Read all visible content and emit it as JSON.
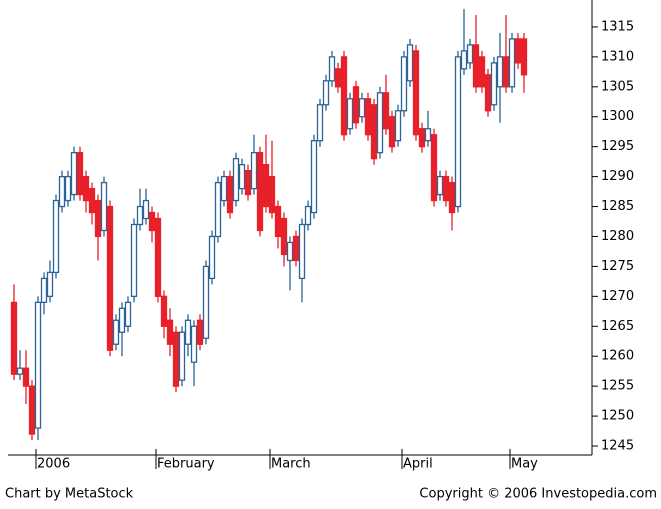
{
  "chart_data": {
    "type": "candlestick",
    "ylim": [
      1243.5,
      1319.5
    ],
    "yticks": [
      1245,
      1250,
      1255,
      1260,
      1265,
      1270,
      1275,
      1280,
      1285,
      1290,
      1295,
      1300,
      1305,
      1310,
      1315
    ],
    "up_color": "#2a6496",
    "down_color": "#e8202a",
    "categories": [
      null,
      null,
      null,
      null,
      "2006",
      null,
      null,
      null,
      null,
      null,
      null,
      null,
      null,
      null,
      null,
      null,
      null,
      null,
      null,
      null,
      null,
      null,
      null,
      null,
      "February",
      null,
      null,
      null,
      null,
      null,
      null,
      null,
      null,
      null,
      null,
      null,
      null,
      null,
      null,
      null,
      null,
      null,
      null,
      "March",
      null,
      null,
      null,
      null,
      null,
      null,
      null,
      null,
      null,
      null,
      null,
      null,
      null,
      null,
      null,
      null,
      null,
      null,
      null,
      null,
      null,
      "April",
      null,
      null,
      null,
      null,
      null,
      null,
      null,
      null,
      null,
      null,
      null,
      null,
      null,
      null,
      null,
      null,
      null,
      "May",
      null,
      null
    ],
    "ohlc": [
      [
        1269,
        1272,
        1256,
        1257
      ],
      [
        1257,
        1261,
        1256,
        1258
      ],
      [
        1258,
        1261,
        1252,
        1255
      ],
      [
        1255,
        1256,
        1246,
        1247
      ],
      [
        1248,
        1270,
        1246,
        1269
      ],
      [
        1269,
        1274,
        1267,
        1273
      ],
      [
        1270,
        1276,
        1269,
        1274
      ],
      [
        1274,
        1287,
        1273,
        1286
      ],
      [
        1285,
        1291,
        1284,
        1290
      ],
      [
        1286,
        1291,
        1285,
        1290
      ],
      [
        1287,
        1295,
        1286,
        1294
      ],
      [
        1294,
        1295,
        1286,
        1287
      ],
      [
        1290,
        1291,
        1284,
        1286
      ],
      [
        1288,
        1289,
        1282,
        1284
      ],
      [
        1286,
        1287,
        1276,
        1280
      ],
      [
        1281,
        1290,
        1280,
        1289
      ],
      [
        1285,
        1286,
        1260,
        1261
      ],
      [
        1262,
        1267,
        1261,
        1266
      ],
      [
        1264,
        1269,
        1260,
        1268
      ],
      [
        1265,
        1270,
        1264,
        1269
      ],
      [
        1270,
        1283,
        1269,
        1282
      ],
      [
        1282,
        1288,
        1281,
        1285
      ],
      [
        1283,
        1288,
        1282,
        1286
      ],
      [
        1284,
        1285,
        1279,
        1281
      ],
      [
        1283,
        1284,
        1269,
        1270
      ],
      [
        1270,
        1271,
        1263,
        1265
      ],
      [
        1266,
        1268,
        1260,
        1262
      ],
      [
        1264,
        1265,
        1254,
        1255
      ],
      [
        1256,
        1265,
        1255,
        1264
      ],
      [
        1262,
        1267,
        1260,
        1266
      ],
      [
        1259,
        1266,
        1255,
        1265
      ],
      [
        1266,
        1267,
        1261,
        1262
      ],
      [
        1263,
        1276,
        1262,
        1275
      ],
      [
        1273,
        1281,
        1272,
        1280
      ],
      [
        1280,
        1290,
        1279,
        1289
      ],
      [
        1286,
        1291,
        1285,
        1290
      ],
      [
        1290,
        1291,
        1283,
        1284
      ],
      [
        1286,
        1294,
        1285,
        1293
      ],
      [
        1288,
        1293,
        1287,
        1292
      ],
      [
        1291,
        1292,
        1286,
        1287
      ],
      [
        1288,
        1297,
        1287,
        1294
      ],
      [
        1294,
        1295,
        1280,
        1281
      ],
      [
        1292,
        1297,
        1284,
        1285
      ],
      [
        1290,
        1296,
        1283,
        1284
      ],
      [
        1285,
        1286,
        1278,
        1280
      ],
      [
        1283,
        1284,
        1275,
        1277
      ],
      [
        1276,
        1280,
        1271,
        1279
      ],
      [
        1280,
        1281,
        1275,
        1276
      ],
      [
        1273,
        1283,
        1269,
        1282
      ],
      [
        1282,
        1286,
        1281,
        1285
      ],
      [
        1284,
        1297,
        1283,
        1296
      ],
      [
        1296,
        1303,
        1295,
        1302
      ],
      [
        1302,
        1307,
        1301,
        1306
      ],
      [
        1306,
        1311,
        1305,
        1310
      ],
      [
        1308,
        1309,
        1304,
        1305
      ],
      [
        1310,
        1311,
        1296,
        1297
      ],
      [
        1298,
        1304,
        1297,
        1303
      ],
      [
        1305,
        1306,
        1298,
        1299
      ],
      [
        1300,
        1304,
        1299,
        1303
      ],
      [
        1303,
        1304,
        1296,
        1297
      ],
      [
        1302,
        1303,
        1292,
        1293
      ],
      [
        1294,
        1305,
        1293,
        1304
      ],
      [
        1304,
        1307,
        1297,
        1298
      ],
      [
        1300,
        1301,
        1294,
        1295
      ],
      [
        1296,
        1302,
        1295,
        1301
      ],
      [
        1301,
        1311,
        1300,
        1310
      ],
      [
        1306,
        1313,
        1305,
        1312
      ],
      [
        1311,
        1312,
        1296,
        1297
      ],
      [
        1298,
        1299,
        1294,
        1295
      ],
      [
        1296,
        1301,
        1295,
        1298
      ],
      [
        1297,
        1298,
        1285,
        1286
      ],
      [
        1287,
        1291,
        1286,
        1290
      ],
      [
        1290,
        1291,
        1285,
        1286
      ],
      [
        1289,
        1290,
        1281,
        1284
      ],
      [
        1285,
        1311,
        1284,
        1310
      ],
      [
        1308,
        1318,
        1307,
        1311
      ],
      [
        1309,
        1313,
        1308,
        1312
      ],
      [
        1312,
        1317,
        1304,
        1305
      ],
      [
        1310,
        1311,
        1304,
        1305
      ],
      [
        1307,
        1308,
        1300,
        1301
      ],
      [
        1302,
        1310,
        1301,
        1309
      ],
      [
        1305,
        1314,
        1299,
        1310
      ],
      [
        1310,
        1317,
        1304,
        1305
      ],
      [
        1305,
        1314,
        1304,
        1313
      ],
      [
        1313,
        1314,
        1308,
        1309
      ],
      [
        1313,
        1314,
        1304,
        1307
      ]
    ],
    "footer_left": "Chart by MetaStock",
    "footer_right": "Copyright © 2006 Investopedia.com"
  }
}
